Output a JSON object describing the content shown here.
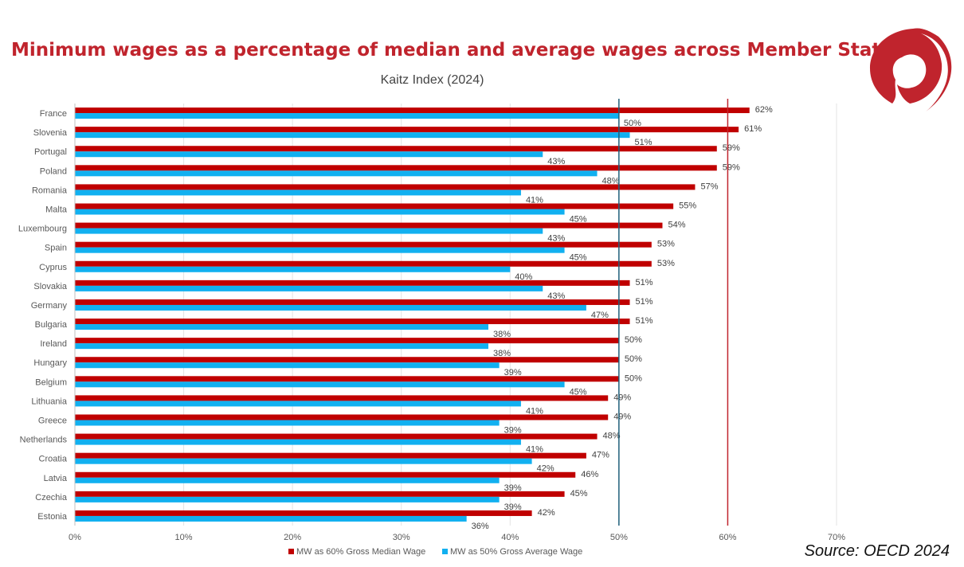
{
  "header": {
    "title": "Minimum wages as a percentage of median and average wages across Member States",
    "source": "Source: OECD 2024"
  },
  "colors": {
    "title": "#c0242d",
    "median_series": "#c00000",
    "average_series": "#11b0f0",
    "ref_line_50": "#1f5f7a",
    "ref_line_60": "#c0242d",
    "logo": "#c0242d"
  },
  "logo": {
    "icon": "red-circle-swirl-logo"
  },
  "chart_data": {
    "type": "bar",
    "orientation": "horizontal",
    "title": "Kaitz Index (2024)",
    "xlabel": "",
    "ylabel": "",
    "xlim": [
      0,
      70
    ],
    "xticks": [
      0,
      10,
      20,
      30,
      40,
      50,
      60,
      70
    ],
    "tick_suffix": "%",
    "grid": true,
    "legend": "bottom",
    "reference_lines": [
      50,
      60
    ],
    "categories": [
      "France",
      "Slovenia",
      "Portugal",
      "Poland",
      "Romania",
      "Malta",
      "Luxembourg",
      "Spain",
      "Cyprus",
      "Slovakia",
      "Germany",
      "Bulgaria",
      "Ireland",
      "Hungary",
      "Belgium",
      "Lithuania",
      "Greece",
      "Netherlands",
      "Croatia",
      "Latvia",
      "Czechia",
      "Estonia"
    ],
    "series": [
      {
        "name": "MW as 60% Gross Median Wage",
        "values": [
          62,
          61,
          59,
          59,
          57,
          55,
          54,
          53,
          53,
          51,
          51,
          51,
          50,
          50,
          50,
          49,
          49,
          48,
          47,
          46,
          45,
          42
        ]
      },
      {
        "name": "MW as 50% Gross Average Wage",
        "values": [
          50,
          51,
          43,
          48,
          41,
          45,
          43,
          45,
          40,
          43,
          47,
          38,
          38,
          39,
          45,
          41,
          39,
          41,
          42,
          39,
          39,
          36
        ]
      }
    ]
  }
}
